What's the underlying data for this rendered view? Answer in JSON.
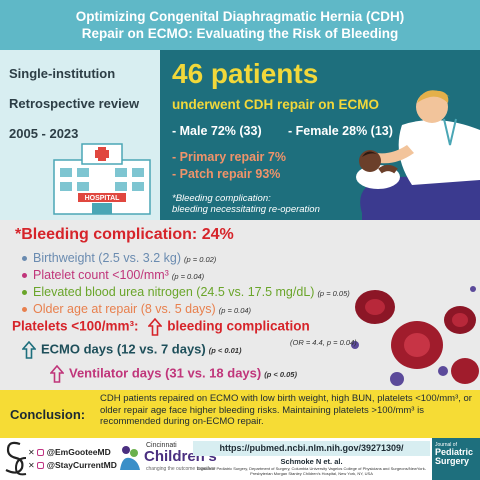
{
  "header": {
    "title_line1": "Optimizing Congenital Diaphragmatic Hernia (CDH)",
    "title_line2": "Repair on ECMO: Evaluating the Risk of Bleeding"
  },
  "study": {
    "design1": "Single-institution",
    "design2": "Retrospective review",
    "years": "2005 - 2023",
    "hospital_sign": "HOSPITAL"
  },
  "patients": {
    "count_headline": "46 patients",
    "description": "underwent CDH repair on ECMO",
    "male": "- Male 72% (33)",
    "female": "- Female 28% (13)",
    "primary": "- Primary repair 7%",
    "patch": "- Patch repair 93%",
    "note_line1": "*Bleeding complication:",
    "note_line2": "bleeding necessitating re-operation"
  },
  "bleeding": {
    "title": "*Bleeding complication: 24%",
    "factors": [
      {
        "text": "Birthweight (2.5 vs. 3.2 kg)",
        "p": "(p = 0.02)",
        "color": "#6a8bb0"
      },
      {
        "text": "Platelet count <100/mm³",
        "p": "(p = 0.04)",
        "color": "#c0357a"
      },
      {
        "text": "Elevated blood urea nitrogen (24.5 vs. 17.5 mg/dL)",
        "p": "(p = 0.05)",
        "color": "#6aa52a"
      },
      {
        "text": "Older age at repair (8 vs. 5 days)",
        "p": "(p = 0.04)",
        "color": "#e8804e"
      }
    ],
    "platelets_label": "Platelets <100/mm³:",
    "platelets_result": "bleeding complication",
    "odds_ratio": "(OR = 4.4, p = 0.04)",
    "ecmo_days": "ECMO days (12 vs. 7 days)",
    "ecmo_p": "(p < 0.01)",
    "vent_days": "Ventilator days (31 vs. 18 days)",
    "vent_p": "(p < 0.05)"
  },
  "conclusion": {
    "label": "Conclusion:",
    "text": "CDH patients repaired on ECMO with low birth weight, high BUN, platelets <100/mm³, or older repair age face higher bleeding risks. Maintaining platelets >100/mm³ is recommended during on-ECMO repair."
  },
  "footer": {
    "handle1": "@EmGooteeMD",
    "handle2": "@StayCurrentMD",
    "hospital_small": "Cincinnati",
    "hospital_name": "Children's",
    "hospital_tagline": "changing the outcome together",
    "url": "https://pubmed.ncbi.nlm.nih.gov/39271309/",
    "citation": "Schmoke N et. al.",
    "affiliation": "Division of Pediatric Surgery, Department of Surgery, Columbia University Vagelos College of Physicians and Surgeons/NewYork-Presbyterian Morgan Stanley Children's Hospital, New York, NY, USA",
    "journal_small": "Journal of",
    "journal_line1": "Pediatric",
    "journal_line2": "Surgery"
  }
}
